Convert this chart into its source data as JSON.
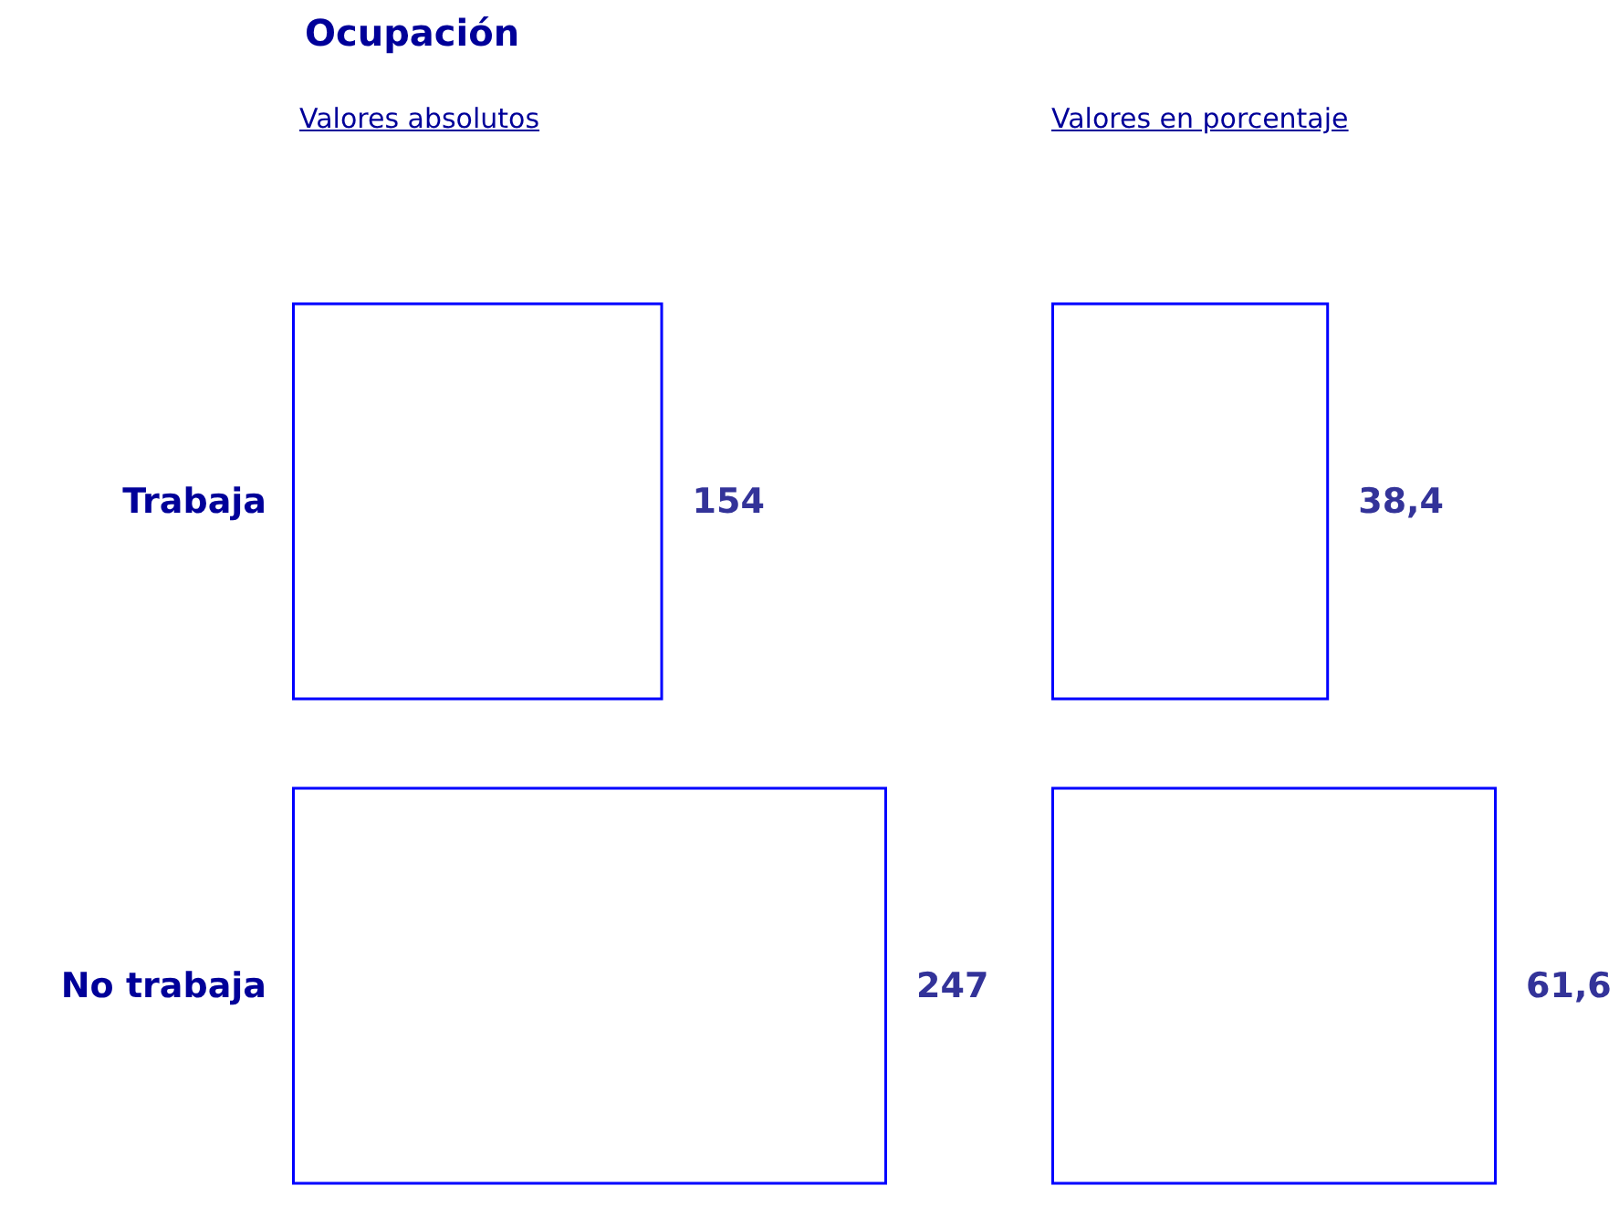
{
  "chart_data": [
    {
      "type": "bar",
      "orientation": "horizontal",
      "title": "Ocupación",
      "subtitle": "Valores absolutos",
      "categories": [
        "Trabaja",
        "No trabaja"
      ],
      "values": [
        154,
        247
      ],
      "color": "#0000ff",
      "data_labels": true,
      "tick_labels": "y",
      "grid": false
    },
    {
      "type": "bar",
      "orientation": "horizontal",
      "subtitle": "Valores en porcentaje",
      "categories": [
        null,
        null
      ],
      "values": [
        38.4,
        61.6
      ],
      "value_labels": [
        "38,4",
        "61,6"
      ],
      "color": "#0000ff",
      "tick_labels": false,
      "grid": false
    }
  ]
}
